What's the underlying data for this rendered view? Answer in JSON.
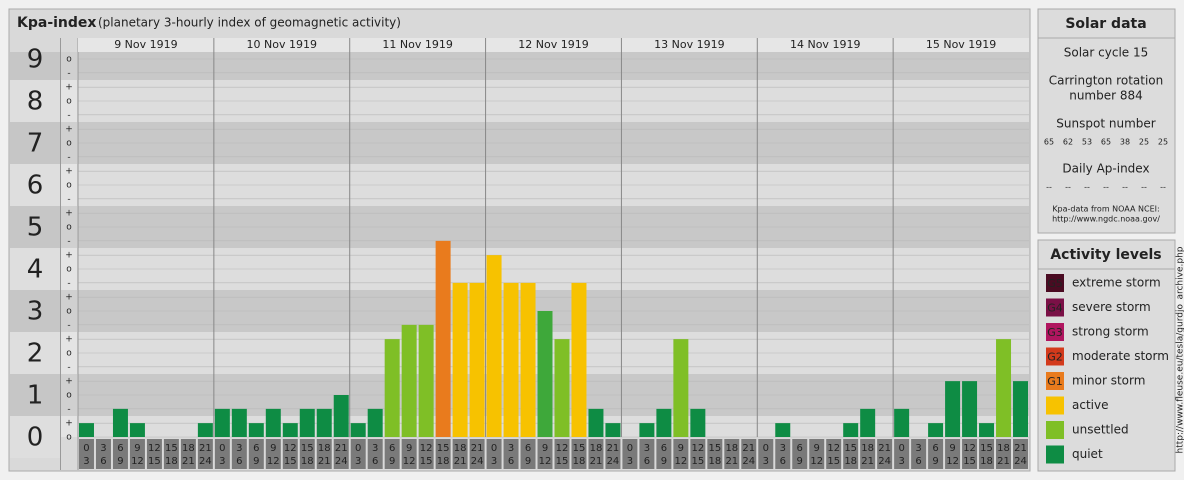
{
  "chart_data": {
    "type": "bar",
    "title": "Kpa-index",
    "subtitle": "(planetary 3-hourly index of geomagnetic activity)",
    "ylim": [
      0,
      9.33
    ],
    "yticks": [
      0,
      1,
      2,
      3,
      4,
      5,
      6,
      7,
      8,
      9
    ],
    "grid": true,
    "minor_yticks": [
      {
        "value": 0,
        "label": "o"
      },
      {
        "value": 0.33,
        "label": "+"
      },
      {
        "value": 0.67,
        "label": "-"
      },
      {
        "value": 1,
        "label": "o"
      },
      {
        "value": 1.33,
        "label": "+"
      },
      {
        "value": 1.67,
        "label": "-"
      },
      {
        "value": 2,
        "label": "o"
      },
      {
        "value": 2.33,
        "label": "+"
      },
      {
        "value": 2.67,
        "label": "-"
      },
      {
        "value": 3,
        "label": "o"
      },
      {
        "value": 3.33,
        "label": "+"
      },
      {
        "value": 3.67,
        "label": "-"
      },
      {
        "value": 4,
        "label": "o"
      },
      {
        "value": 4.33,
        "label": "+"
      },
      {
        "value": 4.67,
        "label": "-"
      },
      {
        "value": 5,
        "label": "o"
      },
      {
        "value": 5.33,
        "label": "+"
      },
      {
        "value": 5.67,
        "label": "-"
      },
      {
        "value": 6,
        "label": "o"
      },
      {
        "value": 6.33,
        "label": "+"
      },
      {
        "value": 6.67,
        "label": "-"
      },
      {
        "value": 7,
        "label": "o"
      },
      {
        "value": 7.33,
        "label": "+"
      },
      {
        "value": 7.67,
        "label": "-"
      },
      {
        "value": 8,
        "label": "o"
      },
      {
        "value": 8.33,
        "label": "+"
      },
      {
        "value": 8.67,
        "label": "-"
      },
      {
        "value": 9,
        "label": "o"
      }
    ],
    "hours": [
      [
        "0",
        "3"
      ],
      [
        "3",
        "6"
      ],
      [
        "6",
        "9"
      ],
      [
        "9",
        "12"
      ],
      [
        "12",
        "15"
      ],
      [
        "15",
        "18"
      ],
      [
        "18",
        "21"
      ],
      [
        "21",
        "24"
      ]
    ],
    "days": [
      {
        "date": "9 Nov 1919",
        "values": [
          0.33,
          0,
          0.67,
          0.33,
          0,
          0,
          0,
          0.33
        ],
        "colors": [
          "#0e8c44",
          "#0e8c44",
          "#0e8c44",
          "#0e8c44",
          "#0e8c44",
          "#0e8c44",
          "#0e8c44",
          "#0e8c44"
        ]
      },
      {
        "date": "10 Nov 1919",
        "values": [
          0.67,
          0.67,
          0.33,
          0.67,
          0.33,
          0.67,
          0.67,
          1
        ],
        "colors": [
          "#0e8c44",
          "#0e8c44",
          "#0e8c44",
          "#0e8c44",
          "#0e8c44",
          "#0e8c44",
          "#0e8c44",
          "#0e8c44"
        ]
      },
      {
        "date": "11 Nov 1919",
        "values": [
          0.33,
          0.67,
          2.33,
          2.67,
          2.67,
          4.67,
          3.67,
          3.67
        ],
        "colors": [
          "#0e8c44",
          "#0e8c44",
          "#7fbf26",
          "#7fbf26",
          "#7fbf26",
          "#e97b1d",
          "#f7c200",
          "#f7c200"
        ]
      },
      {
        "date": "12 Nov 1919",
        "values": [
          4.33,
          3.67,
          3.67,
          3,
          2.33,
          3.67,
          0.67,
          0.33
        ],
        "colors": [
          "#f7c200",
          "#f7c200",
          "#f7c200",
          "#3ea83a",
          "#7fbf26",
          "#f7c200",
          "#0e8c44",
          "#0e8c44"
        ]
      },
      {
        "date": "13 Nov 1919",
        "values": [
          0,
          0.33,
          0.67,
          2.33,
          0.67,
          0,
          0,
          0
        ],
        "colors": [
          "#0e8c44",
          "#0e8c44",
          "#0e8c44",
          "#7fbf26",
          "#0e8c44",
          "#0e8c44",
          "#0e8c44",
          "#0e8c44"
        ]
      },
      {
        "date": "14 Nov 1919",
        "values": [
          0,
          0.33,
          0,
          0,
          0,
          0.33,
          0.67,
          0
        ],
        "colors": [
          "#0e8c44",
          "#0e8c44",
          "#0e8c44",
          "#0e8c44",
          "#0e8c44",
          "#0e8c44",
          "#0e8c44",
          "#0e8c44"
        ]
      },
      {
        "date": "15 Nov 1919",
        "values": [
          0.67,
          0,
          0.33,
          1.33,
          1.33,
          0.33,
          2.33,
          1.33
        ],
        "colors": [
          "#0e8c44",
          "#0e8c44",
          "#0e8c44",
          "#0e8c44",
          "#0e8c44",
          "#0e8c44",
          "#7fbf26",
          "#0e8c44"
        ]
      }
    ]
  },
  "solar_data": {
    "title": "Solar data",
    "cycle": "Solar cycle 15",
    "carrington": [
      "Carrington rotation",
      "number 884"
    ],
    "sunspot_title": "Sunspot number",
    "sunspot": [
      65,
      62,
      53,
      65,
      38,
      25,
      25
    ],
    "ap_title": "Daily Ap-index",
    "ap": [
      "--",
      "--",
      "--",
      "--",
      "--",
      "--",
      "--"
    ],
    "source": [
      "Kpa-data from NOAA NCEI:",
      "http://www.ngdc.noaa.gov/"
    ]
  },
  "activity": {
    "title": "Activity levels",
    "levels": [
      {
        "badge": "G5",
        "label": "extreme storm",
        "color": "#4a0b22"
      },
      {
        "badge": "G4",
        "label": "severe storm",
        "color": "#7a1046"
      },
      {
        "badge": "G3",
        "label": "strong storm",
        "color": "#b0155f"
      },
      {
        "badge": "G2",
        "label": "moderate storm",
        "color": "#d33a1c"
      },
      {
        "badge": "G1",
        "label": "minor storm",
        "color": "#e97b1d"
      },
      {
        "label": "active",
        "color": "#f7c200"
      },
      {
        "label": "unsettled",
        "color": "#7fbf26"
      },
      {
        "label": "quiet",
        "color": "#0e8c44"
      }
    ]
  },
  "credit": "http://www.fleuse.eu/tesla/gurdjo_archive.php"
}
